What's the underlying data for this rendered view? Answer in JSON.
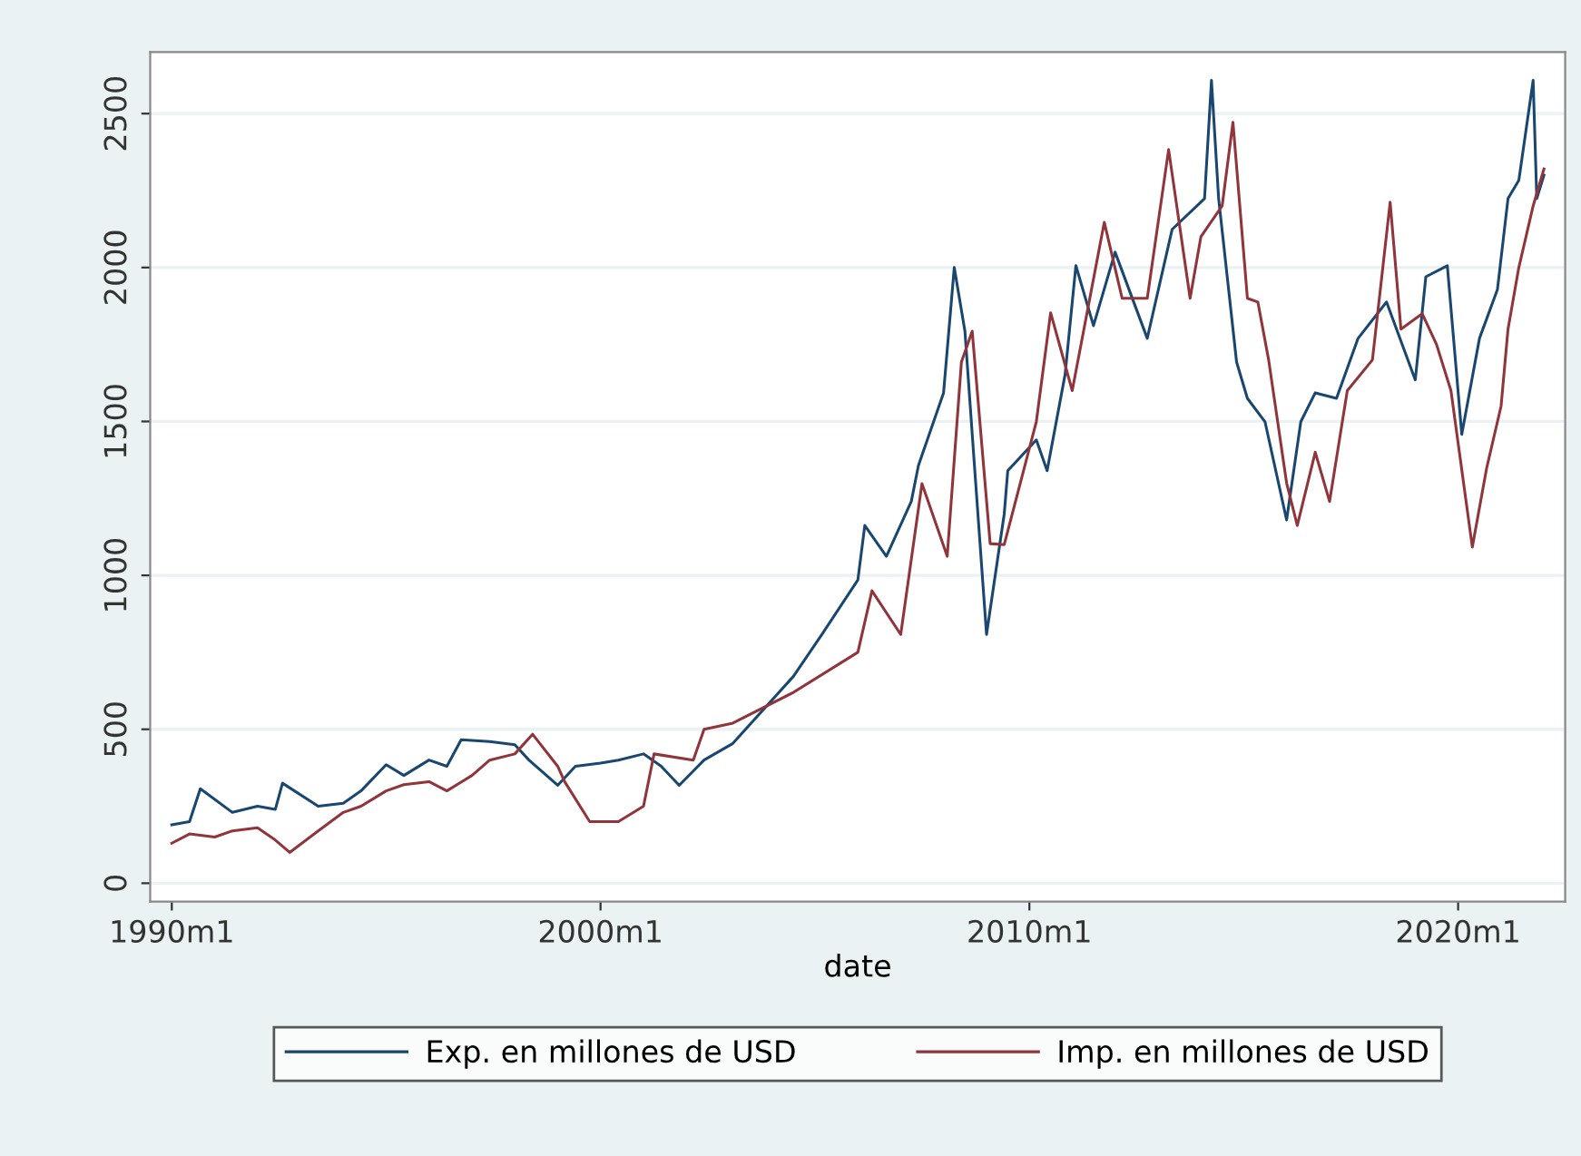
{
  "chart_data": {
    "type": "line",
    "xlabel": "date",
    "xlim": [
      "1989-07",
      "2022-07"
    ],
    "ylim": [
      -60,
      2700
    ],
    "xticks": [
      {
        "value": "1990-01",
        "label": "1990m1"
      },
      {
        "value": "2000-01",
        "label": "2000m1"
      },
      {
        "value": "2010-01",
        "label": "2010m1"
      },
      {
        "value": "2020-01",
        "label": "2020m1"
      }
    ],
    "yticks": [
      0,
      500,
      1000,
      1500,
      2000,
      2500
    ],
    "grid": "y",
    "legend": "bottom",
    "marker": "none",
    "line_style": "solid",
    "series": [
      {
        "name": "Exp. en millones de USD",
        "color": "#1a476f",
        "x": [
          "1990-01",
          "1990-06",
          "1990-09",
          "1991-06",
          "1992-01",
          "1992-06",
          "1992-08",
          "1993-06",
          "1994-01",
          "1994-06",
          "1995-01",
          "1995-06",
          "1996-01",
          "1996-06",
          "1996-10",
          "1997-06",
          "1998-01",
          "1998-05",
          "1999-01",
          "1999-06",
          "2000-01",
          "2000-06",
          "2001-01",
          "2001-06",
          "2001-11",
          "2002-06",
          "2003-02",
          "2004-07",
          "2005-03",
          "2006-01",
          "2006-03",
          "2006-09",
          "2007-04",
          "2007-06",
          "2008-01",
          "2008-04",
          "2008-07",
          "2008-10",
          "2009-01",
          "2009-06",
          "2009-07",
          "2010-03",
          "2010-06",
          "2010-11",
          "2011-02",
          "2011-07",
          "2012-01",
          "2012-10",
          "2013-05",
          "2014-02",
          "2014-04",
          "2014-06",
          "2014-11",
          "2015-02",
          "2015-07",
          "2016-01",
          "2016-05",
          "2016-09",
          "2017-03",
          "2017-09",
          "2018-05",
          "2019-01",
          "2019-04",
          "2019-10",
          "2020-02",
          "2020-07",
          "2020-12",
          "2021-03",
          "2021-06",
          "2021-10",
          "2021-11",
          "2022-01"
        ],
        "values": [
          190,
          200,
          307,
          230,
          250,
          240,
          325,
          250,
          260,
          300,
          385,
          350,
          400,
          380,
          466,
          460,
          450,
          400,
          318,
          380,
          390,
          400,
          420,
          380,
          318,
          400,
          454,
          672,
          808,
          985,
          1162,
          1062,
          1240,
          1357,
          1593,
          2000,
          1793,
          1298,
          808,
          1200,
          1340,
          1440,
          1340,
          1652,
          2006,
          1811,
          2050,
          1770,
          2124,
          2224,
          2608,
          2224,
          1693,
          1575,
          1499,
          1180,
          1499,
          1593,
          1575,
          1770,
          1888,
          1635,
          1970,
          2006,
          1458,
          1770,
          1929,
          2224,
          2283,
          2608,
          2224,
          2300
        ]
      },
      {
        "name": "Imp. en millones de USD",
        "color": "#90353b",
        "x": [
          "1990-01",
          "1990-06",
          "1991-01",
          "1991-06",
          "1992-01",
          "1992-06",
          "1992-10",
          "1993-06",
          "1994-01",
          "1994-06",
          "1995-01",
          "1995-06",
          "1996-01",
          "1996-06",
          "1997-01",
          "1997-06",
          "1998-01",
          "1998-06",
          "1999-01",
          "1999-03",
          "1999-10",
          "2000-06",
          "2001-01",
          "2001-04",
          "2002-03",
          "2002-06",
          "2003-02",
          "2004-07",
          "2006-01",
          "2006-05",
          "2007-01",
          "2007-07",
          "2008-02",
          "2008-06",
          "2008-09",
          "2009-02",
          "2009-06",
          "2010-03",
          "2010-07",
          "2011-01",
          "2011-10",
          "2012-03",
          "2012-10",
          "2013-04",
          "2013-10",
          "2014-01",
          "2014-07",
          "2014-10",
          "2015-02",
          "2015-05",
          "2015-08",
          "2016-01",
          "2016-04",
          "2016-09",
          "2017-01",
          "2017-06",
          "2018-01",
          "2018-06",
          "2018-09",
          "2019-03",
          "2019-07",
          "2019-11",
          "2020-05",
          "2020-09",
          "2021-01",
          "2021-03",
          "2021-06",
          "2021-10",
          "2022-01"
        ],
        "values": [
          130,
          160,
          150,
          170,
          180,
          140,
          100,
          170,
          230,
          250,
          300,
          320,
          330,
          300,
          350,
          400,
          420,
          484,
          380,
          330,
          200,
          200,
          250,
          420,
          400,
          500,
          520,
          620,
          750,
          950,
          808,
          1298,
          1062,
          1693,
          1793,
          1103,
          1100,
          1499,
          1853,
          1600,
          2147,
          1900,
          1900,
          2383,
          1900,
          2100,
          2200,
          2472,
          1900,
          1888,
          1700,
          1300,
          1162,
          1400,
          1240,
          1600,
          1700,
          2212,
          1800,
          1850,
          1750,
          1600,
          1092,
          1350,
          1550,
          1800,
          2000,
          2200,
          2320
        ]
      }
    ]
  }
}
